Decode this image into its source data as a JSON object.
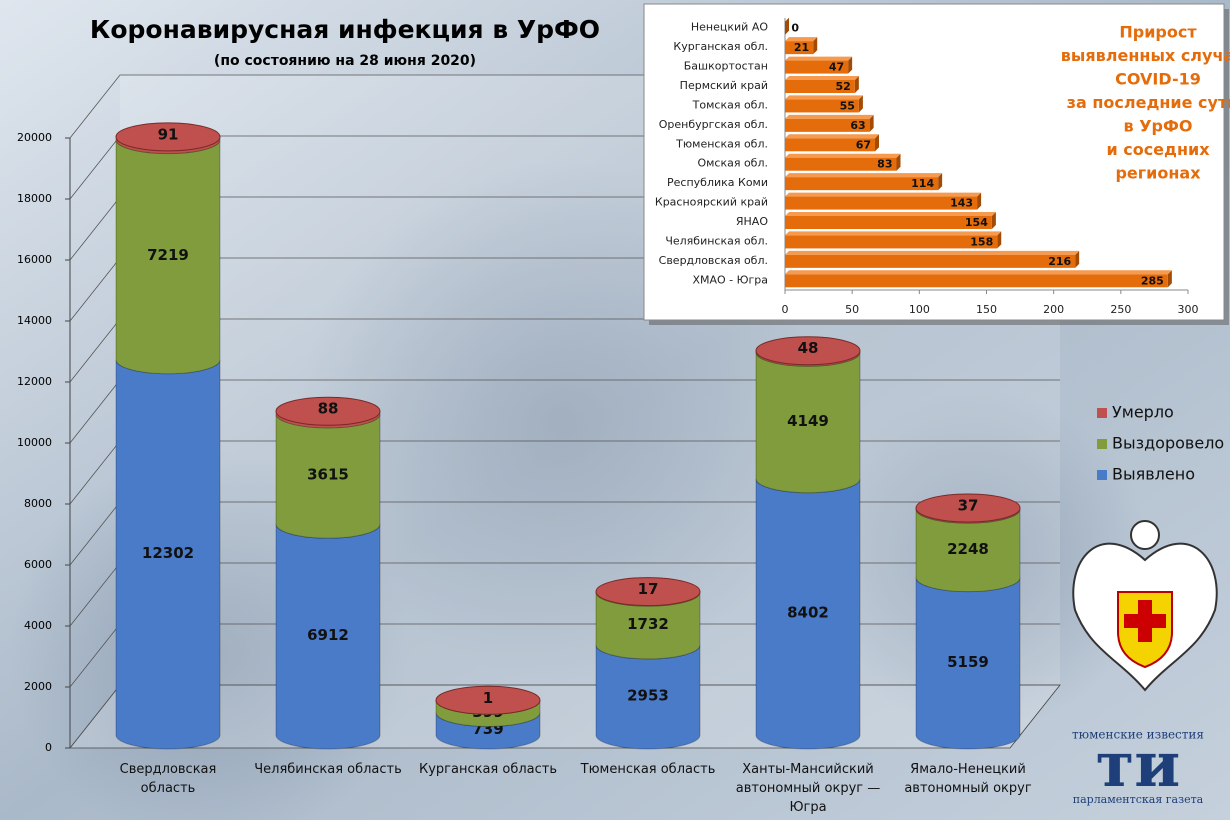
{
  "chart_data": [
    {
      "type": "bar",
      "stacked": true,
      "title": "Коронавирусная инфекция в УрФО",
      "subtitle": "(по состоянию на 28 июня 2020)",
      "categories": [
        "Свердловская область",
        "Челябинская область",
        "Курганская область",
        "Тюменская область",
        "Ханты-Мансийский автономный округ — Югра",
        "Ямало-Ненецкий автономный округ"
      ],
      "series": [
        {
          "name": "Выявлено",
          "color": "#4a7bc8",
          "values": [
            12302,
            6912,
            739,
            2953,
            8402,
            5159
          ]
        },
        {
          "name": "Выздоровело",
          "color": "#809c3c",
          "values": [
            7219,
            3615,
            399,
            1732,
            4149,
            2248
          ]
        },
        {
          "name": "Умерло",
          "color": "#c0504d",
          "values": [
            91,
            88,
            1,
            17,
            48,
            37
          ]
        }
      ],
      "ylim": [
        0,
        20000
      ],
      "yticks": [
        0,
        2000,
        4000,
        6000,
        8000,
        10000,
        12000,
        14000,
        16000,
        18000,
        20000
      ],
      "grid": true,
      "legend": "right"
    },
    {
      "type": "hbar",
      "title": [
        "Прирост",
        "выявленных случаев",
        "COVID-19",
        "за последние сутки",
        "в УрФО",
        "и соседних",
        "регионах"
      ],
      "categories": [
        "Ненецкий АО",
        "Курганская обл.",
        "Башкортостан",
        "Пермский край",
        "Томская обл.",
        "Оренбургская обл.",
        "Тюменская обл.",
        "Омская обл.",
        "Республика Коми",
        "Красноярский край",
        "ЯНАО",
        "Челябинская обл.",
        "Свердловская обл.",
        "ХМАО - Югра"
      ],
      "values": [
        0,
        21,
        47,
        52,
        55,
        63,
        67,
        83,
        114,
        143,
        154,
        158,
        216,
        285
      ],
      "color": "#e46c0a",
      "xlim": [
        0,
        300
      ],
      "xticks": [
        0,
        50,
        100,
        150,
        200,
        250,
        300
      ]
    }
  ],
  "logo": {
    "top": "тюменские известия",
    "mark": "ти",
    "bottom": "парламентская газета"
  }
}
